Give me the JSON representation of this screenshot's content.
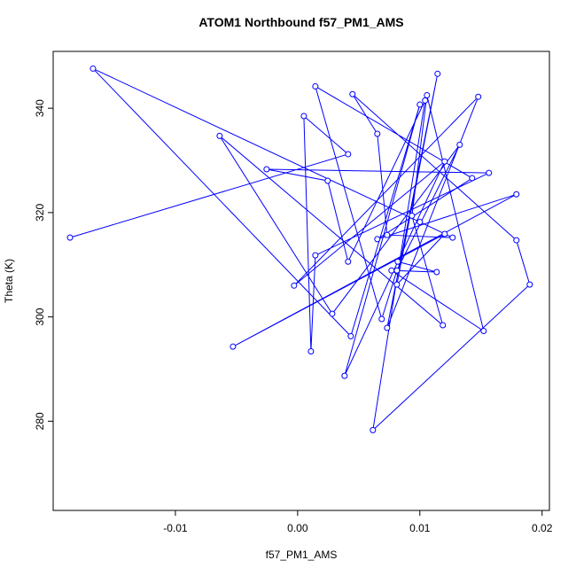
{
  "chart_data": {
    "type": "line",
    "title": "ATOM1 Northbound f57_PM1_AMS",
    "xlabel": "f57_PM1_AMS",
    "ylabel": "Theta (K)",
    "x": [
      -0.01862,
      0.00413,
      0.00051,
      0.00109,
      0.00145,
      0.01565,
      -0.00254,
      0.00246,
      0.00413,
      0.01043,
      0.00616,
      0.01899,
      0.0179,
      0.00449,
      0.00652,
      0.00732,
      0.01268,
      0.01,
      -0.01674,
      0.00435,
      0.01,
      0.00384,
      0.01203,
      -0.00029,
      0.01478,
      0.00732,
      0.01145,
      0.00812,
      0.01203,
      -0.00529,
      0.0179,
      0.00652,
      0.01428,
      0.00145,
      0.00688,
      0.00812,
      0.01326,
      0.00283,
      -0.00638,
      0.01188,
      0.00935,
      0.01058,
      0.01522,
      0.00768,
      0.01138,
      0.00819
    ],
    "series": [
      {
        "color": "#0000ff",
        "values": [
          315.2,
          331.2,
          338.5,
          293.4,
          311.8,
          327.6,
          328.3,
          326.1,
          310.6,
          341.5,
          278.3,
          306.2,
          314.7,
          342.7,
          335.1,
          315.7,
          315.2,
          318.2,
          347.6,
          296.3,
          340.7,
          288.7,
          329.8,
          306.0,
          342.2,
          297.9,
          346.6,
          306.2,
          315.9,
          294.3,
          323.5,
          314.9,
          326.6,
          344.2,
          299.6,
          308.9,
          333.0,
          300.6,
          334.7,
          298.4,
          319.4,
          342.5,
          297.3,
          308.9,
          308.6,
          310.6
        ]
      }
    ],
    "xlim": [
      -0.02,
      0.0206
    ],
    "ylim": [
      262.9,
      350.9
    ],
    "xticks": [
      {
        "value": -0.01,
        "label": "-0.01"
      },
      {
        "value": 0,
        "label": "0.00"
      },
      {
        "value": 0.01,
        "label": "0.01"
      },
      {
        "value": 0.02,
        "label": "0.02"
      }
    ],
    "yticks": [
      280,
      300,
      320,
      340
    ]
  }
}
